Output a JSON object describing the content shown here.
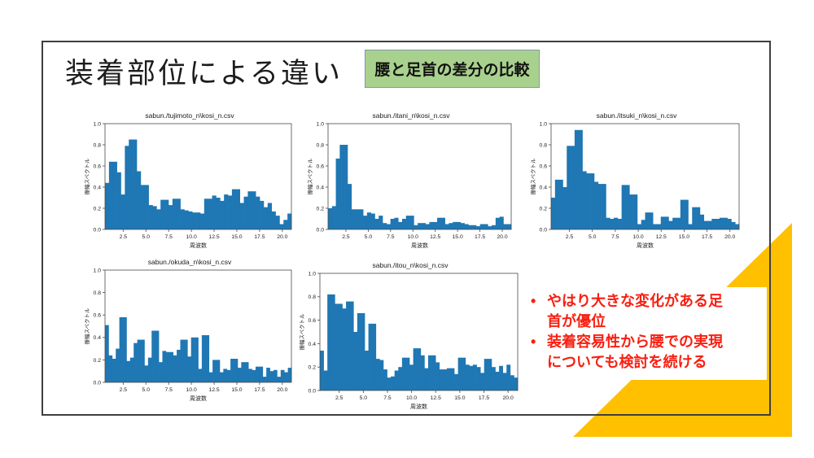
{
  "slide": {
    "title": "装着部位による違い",
    "tag_label": "腰と足首の差分の比較",
    "bullets": [
      "やはり大きな変化がある足首が優位",
      "装着容易性から腰での実現についても検討を続ける"
    ]
  },
  "colors": {
    "bar_blue": "#1f77b4",
    "accent_orange": "#ffc000",
    "tag_green": "#a9d18e",
    "tag_border": "#8496b0",
    "bullet_red": "#f91e10",
    "slide_border": "#3f3f3f",
    "axis_gray": "#4a4a4a"
  },
  "chart_data": [
    {
      "type": "bar",
      "title": "sabun./tujimoto_n\\kosi_n.csv",
      "xlabel": "周波数",
      "ylabel": "振幅スペクトル",
      "ylim": [
        0,
        1.0
      ],
      "x_range": [
        0.5,
        21.0
      ],
      "xticks": [
        2.5,
        5.0,
        7.5,
        10.0,
        12.5,
        15.0,
        17.5,
        20.0
      ],
      "yticks": [
        0.0,
        0.2,
        0.4,
        0.6,
        0.8,
        1.0
      ],
      "grid": false,
      "values": [
        0.44,
        0.64,
        0.64,
        0.54,
        0.33,
        0.79,
        0.85,
        0.85,
        0.55,
        0.42,
        0.42,
        0.23,
        0.22,
        0.19,
        0.28,
        0.28,
        0.23,
        0.29,
        0.29,
        0.19,
        0.18,
        0.17,
        0.16,
        0.16,
        0.15,
        0.29,
        0.29,
        0.32,
        0.3,
        0.27,
        0.33,
        0.32,
        0.38,
        0.38,
        0.25,
        0.31,
        0.36,
        0.36,
        0.31,
        0.27,
        0.21,
        0.25,
        0.17,
        0.13,
        0.05,
        0.09,
        0.15
      ]
    },
    {
      "type": "bar",
      "title": "sabun./itani_n\\kosi_n.csv",
      "xlabel": "周波数",
      "ylabel": "振幅スペクトル",
      "ylim": [
        0,
        1.0
      ],
      "x_range": [
        0.5,
        21.0
      ],
      "xticks": [
        2.5,
        5.0,
        7.5,
        10.0,
        12.5,
        15.0,
        17.5,
        20.0
      ],
      "yticks": [
        0.0,
        0.2,
        0.4,
        0.6,
        0.8,
        1.0
      ],
      "grid": false,
      "values": [
        0.2,
        0.22,
        0.67,
        0.8,
        0.8,
        0.43,
        0.19,
        0.19,
        0.19,
        0.13,
        0.16,
        0.15,
        0.1,
        0.13,
        0.06,
        0.05,
        0.1,
        0.11,
        0.07,
        0.1,
        0.13,
        0.13,
        0.04,
        0.06,
        0.06,
        0.05,
        0.07,
        0.07,
        0.11,
        0.11,
        0.05,
        0.06,
        0.07,
        0.07,
        0.06,
        0.05,
        0.04,
        0.04,
        0.03,
        0.05,
        0.05,
        0.03,
        0.04,
        0.11,
        0.12,
        0.05,
        0.05
      ]
    },
    {
      "type": "bar",
      "title": "sabun./itsuki_n\\kosi_n.csv",
      "xlabel": "周波数",
      "ylabel": "振幅スペクトル",
      "ylim": [
        0,
        1.0
      ],
      "x_range": [
        0.5,
        21.0
      ],
      "xticks": [
        2.5,
        5.0,
        7.5,
        10.0,
        12.5,
        15.0,
        17.5,
        20.0
      ],
      "yticks": [
        0.0,
        0.2,
        0.4,
        0.6,
        0.8,
        1.0
      ],
      "grid": false,
      "values": [
        0.3,
        0.47,
        0.47,
        0.4,
        0.79,
        0.79,
        0.94,
        0.94,
        0.55,
        0.53,
        0.53,
        0.45,
        0.43,
        0.43,
        0.11,
        0.1,
        0.11,
        0.1,
        0.42,
        0.42,
        0.33,
        0.33,
        0.05,
        0.09,
        0.16,
        0.16,
        0.05,
        0.05,
        0.12,
        0.12,
        0.08,
        0.11,
        0.11,
        0.28,
        0.28,
        0.05,
        0.21,
        0.21,
        0.14,
        0.08,
        0.08,
        0.1,
        0.1,
        0.11,
        0.11,
        0.1,
        0.07,
        0.05
      ]
    },
    {
      "type": "bar",
      "title": "sabun./okuda_n\\kosi_n.csv",
      "xlabel": "周波数",
      "ylabel": "振幅スペクトル",
      "ylim": [
        0,
        1.0
      ],
      "x_range": [
        0.5,
        21.0
      ],
      "xticks": [
        2.5,
        5.0,
        7.5,
        10.0,
        12.5,
        15.0,
        17.5,
        20.0
      ],
      "yticks": [
        0.0,
        0.2,
        0.4,
        0.6,
        0.8,
        1.0
      ],
      "grid": false,
      "values": [
        0.51,
        0.24,
        0.21,
        0.3,
        0.58,
        0.58,
        0.19,
        0.22,
        0.35,
        0.38,
        0.38,
        0.15,
        0.22,
        0.46,
        0.46,
        0.18,
        0.28,
        0.27,
        0.27,
        0.24,
        0.29,
        0.38,
        0.38,
        0.23,
        0.4,
        0.4,
        0.12,
        0.42,
        0.42,
        0.09,
        0.2,
        0.2,
        0.09,
        0.12,
        0.11,
        0.21,
        0.21,
        0.13,
        0.18,
        0.18,
        0.12,
        0.11,
        0.14,
        0.14,
        0.05,
        0.13,
        0.1,
        0.11,
        0.05,
        0.11,
        0.09,
        0.13
      ]
    },
    {
      "type": "bar",
      "title": "sabun./itou_n\\kosi_n.csv",
      "xlabel": "周波数",
      "ylabel": "振幅スペクトル",
      "ylim": [
        0,
        1.0
      ],
      "x_range": [
        0.5,
        21.0
      ],
      "xticks": [
        2.5,
        5.0,
        7.5,
        10.0,
        12.5,
        15.0,
        17.5,
        20.0
      ],
      "yticks": [
        0.0,
        0.2,
        0.4,
        0.6,
        0.8,
        1.0
      ],
      "grid": false,
      "values": [
        0.34,
        0.17,
        0.82,
        0.82,
        0.74,
        0.74,
        0.7,
        0.76,
        0.76,
        0.5,
        0.66,
        0.66,
        0.34,
        0.57,
        0.57,
        0.27,
        0.26,
        0.18,
        0.11,
        0.12,
        0.17,
        0.2,
        0.28,
        0.28,
        0.22,
        0.36,
        0.36,
        0.3,
        0.19,
        0.3,
        0.3,
        0.24,
        0.18,
        0.18,
        0.19,
        0.19,
        0.14,
        0.28,
        0.28,
        0.22,
        0.21,
        0.22,
        0.2,
        0.15,
        0.27,
        0.27,
        0.2,
        0.16,
        0.21,
        0.15,
        0.22,
        0.13,
        0.11
      ]
    }
  ]
}
